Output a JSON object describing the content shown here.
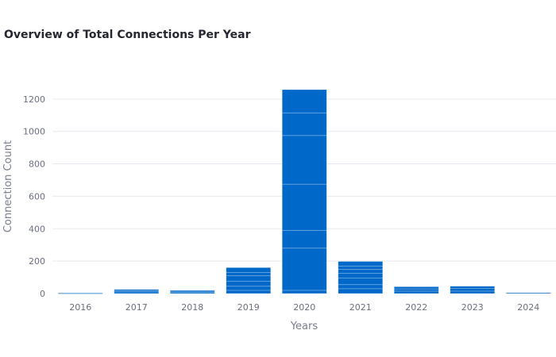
{
  "chart_data": {
    "type": "bar",
    "title": "Overview of Total Connections Per Year",
    "xlabel": "Years",
    "ylabel": "Connection Count",
    "categories": [
      "2016",
      "2017",
      "2018",
      "2019",
      "2020",
      "2021",
      "2022",
      "2023",
      "2024"
    ],
    "values": [
      3,
      25,
      20,
      160,
      1258,
      198,
      42,
      45,
      5
    ],
    "segments": [
      [
        3
      ],
      [
        10,
        8,
        7
      ],
      [
        8,
        7,
        5
      ],
      [
        20,
        25,
        30,
        35,
        20,
        30
      ],
      [
        20,
        260,
        110,
        285,
        300,
        140,
        143
      ],
      [
        30,
        25,
        40,
        30,
        25,
        20,
        28
      ],
      [
        15,
        14,
        13
      ],
      [
        15,
        16,
        14
      ],
      [
        5
      ]
    ],
    "yticks": [
      0,
      200,
      400,
      600,
      800,
      1000,
      1200
    ],
    "ylim": [
      0,
      1300
    ],
    "grid": true,
    "bar_color": "#0068c9"
  }
}
